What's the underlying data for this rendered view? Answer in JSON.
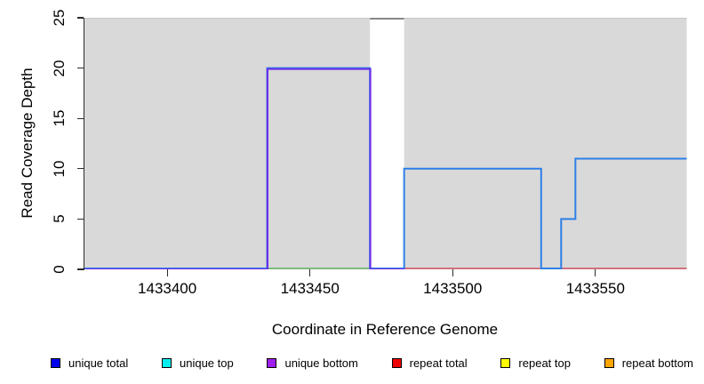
{
  "figure": {
    "background": "#ffffff",
    "shaded_region_color": "#d9d9d9",
    "shaded_region_edge_color": "#c8c8c8",
    "axis_color": "#2b2b2b"
  },
  "chart_data": {
    "type": "line",
    "subtype": "step-coverage",
    "title": "",
    "xlabel": "Coordinate in Reference Genome",
    "ylabel": "Read Coverage Depth",
    "x_domain": [
      1433371,
      1433584
    ],
    "ylim": [
      0,
      25
    ],
    "x_ticks": [
      1433400,
      1433450,
      1433500,
      1433550
    ],
    "y_ticks": [
      0,
      5,
      10,
      15,
      20,
      25
    ],
    "grid": "off",
    "shaded_regions": [
      {
        "name": "covered-block-left",
        "start": 1433371,
        "end": 1433471
      },
      {
        "name": "covered-block-right",
        "start": 1433483,
        "end": 1433582
      }
    ],
    "gap_region": {
      "start": 1433471,
      "end": 1433483
    },
    "series": [
      {
        "name": "repeat total (zero line)",
        "color": "#d05060",
        "width": 1.5,
        "points": [
          [
            1433483,
            0
          ],
          [
            1433582,
            0
          ]
        ]
      },
      {
        "name": "green zero segment",
        "color": "#5faf5f",
        "width": 1.5,
        "points": [
          [
            1433435,
            0
          ],
          [
            1433471,
            0
          ]
        ]
      },
      {
        "name": "unique total",
        "color": "#2e7fe8",
        "width": 2,
        "points": [
          [
            1433371,
            0
          ],
          [
            1433435,
            0
          ],
          [
            1433435,
            20
          ],
          [
            1433471,
            20
          ],
          [
            1433471,
            0
          ],
          [
            1433483,
            0
          ],
          [
            1433483,
            10
          ],
          [
            1433531,
            10
          ],
          [
            1433531,
            0
          ],
          [
            1433538,
            0
          ],
          [
            1433538,
            5
          ],
          [
            1433543,
            5
          ],
          [
            1433543,
            11
          ],
          [
            1433582,
            11
          ]
        ]
      },
      {
        "name": "unique bottom",
        "color": "#6d2fe8",
        "width": 2,
        "offset": [
          0.5,
          1
        ],
        "points": [
          [
            1433371,
            0
          ],
          [
            1433435,
            0
          ],
          [
            1433435,
            20
          ],
          [
            1433471,
            20
          ],
          [
            1433471,
            0
          ],
          [
            1433483,
            0
          ]
        ]
      },
      {
        "name": "clipped coverage at plot top",
        "color": "#888888",
        "width": 2,
        "points": [
          [
            1433471,
            25
          ],
          [
            1433483,
            25
          ]
        ]
      }
    ],
    "legend": {
      "position": "bottom",
      "items": [
        {
          "label": "unique total",
          "color": "#0000ee"
        },
        {
          "label": "unique top",
          "color": "#00eeee"
        },
        {
          "label": "unique bottom",
          "color": "#a020f0"
        },
        {
          "label": "repeat total",
          "color": "#ee0000"
        },
        {
          "label": "repeat top",
          "color": "#ffff00"
        },
        {
          "label": "repeat bottom",
          "color": "#ffa500"
        }
      ]
    }
  }
}
